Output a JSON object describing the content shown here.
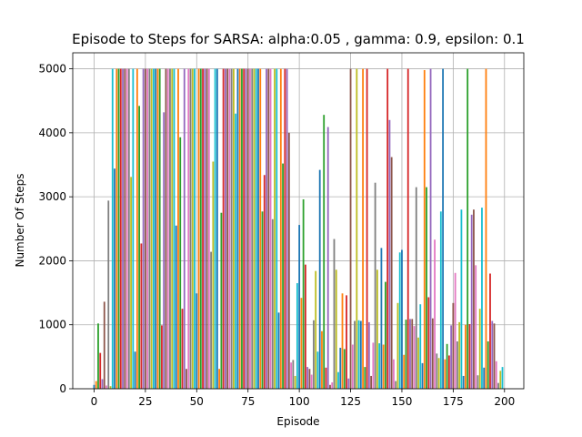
{
  "chart_data": {
    "type": "bar",
    "title": "Episode to Steps for SARSA: alpha:0.05 , gamma: 0.9, epsilon: 0.1",
    "xlabel": "Episode",
    "ylabel": "Number Of Steps",
    "colors": [
      "#1f77b4",
      "#ff7f0e",
      "#2ca02c",
      "#d62728",
      "#9467bd",
      "#8c564b",
      "#e377c2",
      "#7f7f7f",
      "#bcbd22",
      "#17becf"
    ],
    "bar_width": 0.8,
    "values": [
      60,
      120,
      1020,
      560,
      150,
      1360,
      50,
      2940,
      40,
      5000,
      3440,
      5000,
      5000,
      5000,
      5000,
      5000,
      5000,
      5000,
      3310,
      5000,
      580,
      5000,
      4420,
      2270,
      5000,
      5000,
      5000,
      5000,
      5000,
      5000,
      5000,
      5000,
      5000,
      990,
      4320,
      5000,
      5000,
      5000,
      5000,
      5000,
      2550,
      5000,
      3930,
      1250,
      5000,
      310,
      5000,
      5000,
      5000,
      5000,
      1490,
      5000,
      5000,
      5000,
      5000,
      5000,
      5000,
      2140,
      3550,
      5000,
      5000,
      310,
      2750,
      5000,
      5000,
      5000,
      5000,
      5000,
      5000,
      4300,
      5000,
      5000,
      5000,
      5000,
      5000,
      5000,
      5000,
      5000,
      5000,
      5000,
      5000,
      5000,
      2770,
      3340,
      5000,
      5000,
      5000,
      2650,
      5000,
      5000,
      1190,
      5000,
      3520,
      5000,
      5000,
      4000,
      410,
      450,
      200,
      1650,
      2560,
      1420,
      2960,
      1940,
      340,
      310,
      220,
      1070,
      1840,
      580,
      3420,
      900,
      4280,
      330,
      4090,
      60,
      100,
      2340,
      1860,
      260,
      640,
      1490,
      620,
      1460,
      160,
      5000,
      690,
      1060,
      5000,
      1070,
      1060,
      5000,
      340,
      5000,
      1040,
      200,
      720,
      3220,
      1860,
      710,
      2200,
      690,
      1670,
      5000,
      4200,
      3620,
      460,
      120,
      1340,
      2130,
      2170,
      530,
      1080,
      5000,
      1090,
      1090,
      980,
      3150,
      800,
      1320,
      400,
      4980,
      3150,
      1430,
      5000,
      1100,
      2330,
      550,
      480,
      2770,
      5000,
      460,
      700,
      520,
      990,
      1340,
      1810,
      740,
      1040,
      2800,
      200,
      1000,
      5000,
      1010,
      2720,
      2800,
      1930,
      210,
      1250,
      2830,
      330,
      5000,
      740,
      1800,
      1060,
      1020,
      430,
      90,
      280,
      340
    ],
    "xlim": [
      -10.4,
      209.4
    ],
    "ylim": [
      0,
      5250
    ],
    "xticks": [
      0,
      25,
      50,
      75,
      100,
      125,
      150,
      175,
      200
    ],
    "yticks": [
      0,
      1000,
      2000,
      3000,
      4000,
      5000
    ],
    "grid": true
  }
}
